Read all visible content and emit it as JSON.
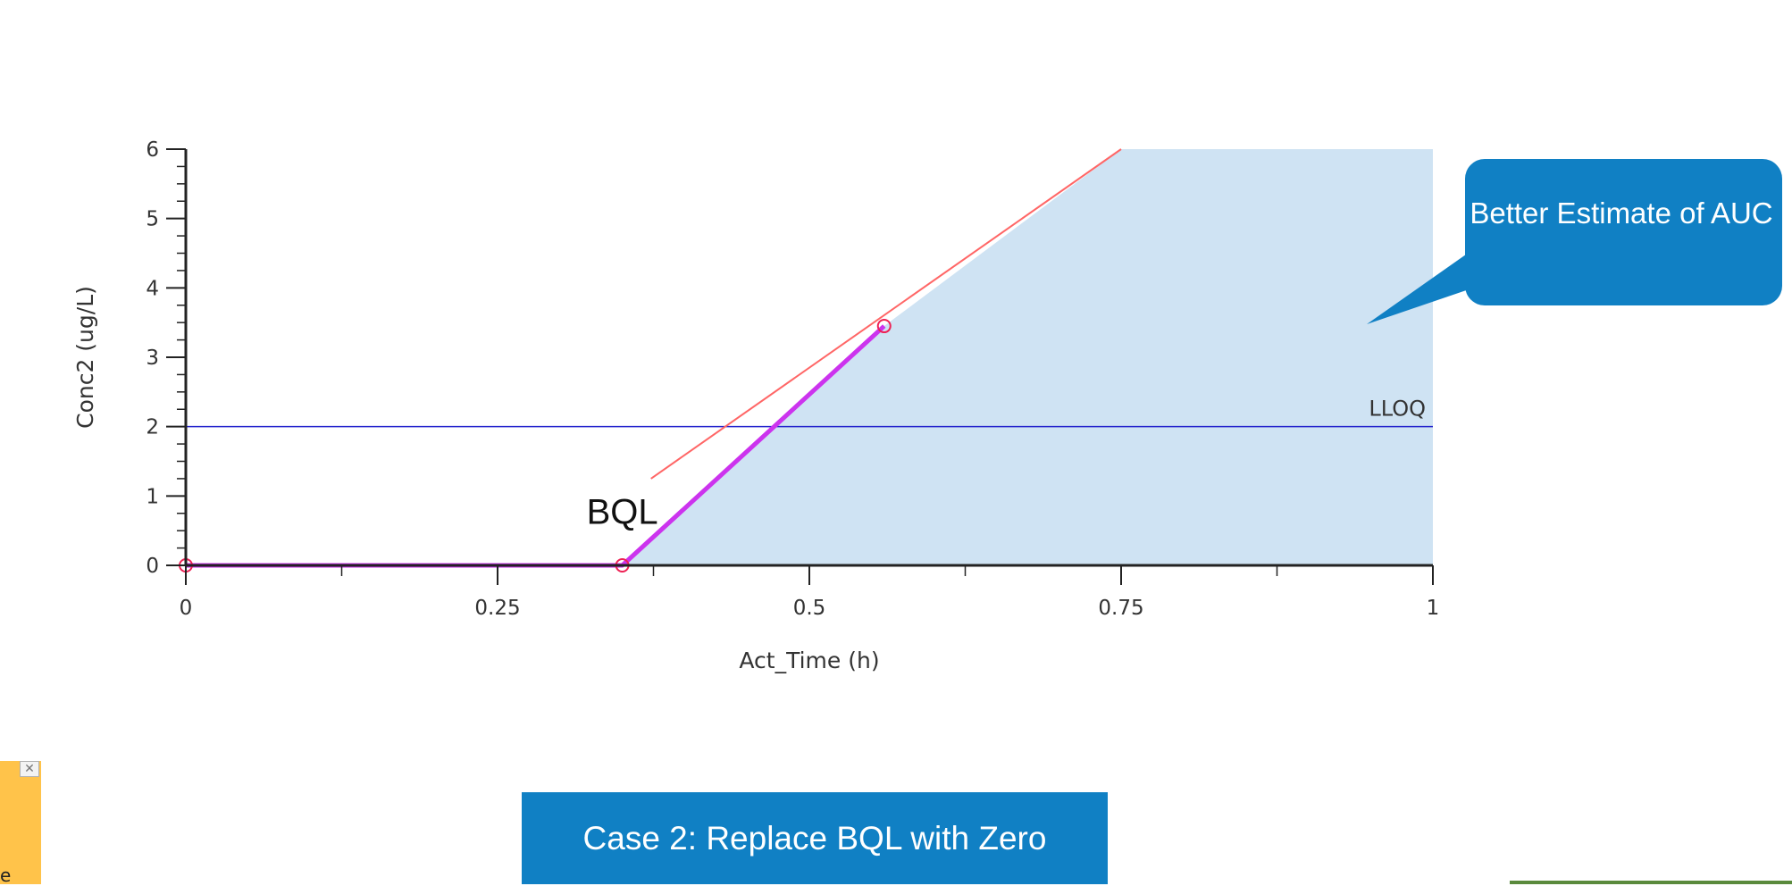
{
  "chart_data": {
    "type": "line",
    "title": "",
    "xlabel": "Act_Time (h)",
    "ylabel": "Conc2 (ug/L)",
    "xlim": [
      0,
      1
    ],
    "ylim": [
      0,
      6
    ],
    "x_ticks": [
      {
        "value": 0,
        "label": "0"
      },
      {
        "value": 0.25,
        "label": "0.25"
      },
      {
        "value": 0.5,
        "label": "0.5"
      },
      {
        "value": 0.75,
        "label": "0.75"
      },
      {
        "value": 1,
        "label": "1"
      }
    ],
    "y_ticks": [
      {
        "value": 0,
        "label": "0"
      },
      {
        "value": 1,
        "label": "1"
      },
      {
        "value": 2,
        "label": "2"
      },
      {
        "value": 3,
        "label": "3"
      },
      {
        "value": 4,
        "label": "4"
      },
      {
        "value": 5,
        "label": "5"
      },
      {
        "value": 6,
        "label": "6"
      }
    ],
    "grid": false,
    "legend": "none",
    "series": [
      {
        "color": "#cc33ee",
        "points": [
          [
            0,
            0
          ],
          [
            0.35,
            0
          ],
          [
            0.56,
            3.45
          ]
        ]
      },
      {
        "color": "#ff6666",
        "points": [
          [
            0.373,
            1.25
          ],
          [
            0.75,
            6
          ]
        ]
      }
    ],
    "markers": {
      "color": "#ee2255",
      "points": [
        [
          0,
          0
        ],
        [
          0.35,
          0
        ],
        [
          0.56,
          3.45
        ]
      ]
    },
    "shaded_region": {
      "color": "#cfe3f3",
      "points": [
        [
          0.35,
          0
        ],
        [
          0.56,
          3.45
        ],
        [
          0.75,
          6
        ],
        [
          1,
          6
        ],
        [
          1,
          0
        ]
      ]
    },
    "reference_line": {
      "y": 2,
      "label": "LLOQ",
      "color": "#2222cc"
    },
    "annotations": [
      {
        "text": "BQL",
        "x": 0.35,
        "y": 0.6
      }
    ]
  },
  "callout": {
    "text": "Better Estimate of AUC",
    "color": "#1080c4"
  },
  "case_banner": {
    "text": "Case 2: Replace BQL with Zero",
    "color": "#1080c4"
  },
  "notice": {
    "close_glyph": "✕",
    "text": "e"
  }
}
